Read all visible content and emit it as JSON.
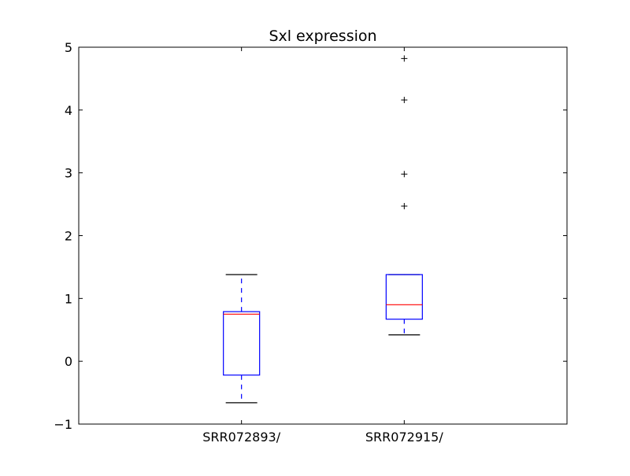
{
  "chart_data": {
    "type": "box",
    "title": "Sxl expression",
    "xlabel": "",
    "ylabel": "",
    "ylim": [
      -1,
      5
    ],
    "yticks": [
      -1,
      0,
      1,
      2,
      3,
      4,
      5
    ],
    "ytick_labels": [
      "−1",
      "0",
      "1",
      "2",
      "3",
      "4",
      "5"
    ],
    "grid": false,
    "colors": {
      "box": "#0000ff",
      "median": "#ff0000",
      "whisker": "#0000ff",
      "cap": "#000000",
      "flier": "#000000"
    },
    "boxes": [
      {
        "label": "SRR072893/",
        "whislo": -0.66,
        "q1": -0.22,
        "median": 0.75,
        "q3": 0.79,
        "whishi": 1.38,
        "fliers": []
      },
      {
        "label": "SRR072915/",
        "whislo": 0.42,
        "q1": 0.67,
        "median": 0.9,
        "q3": 1.38,
        "whishi": 1.38,
        "fliers": [
          2.47,
          2.98,
          4.16,
          4.82
        ]
      }
    ]
  }
}
